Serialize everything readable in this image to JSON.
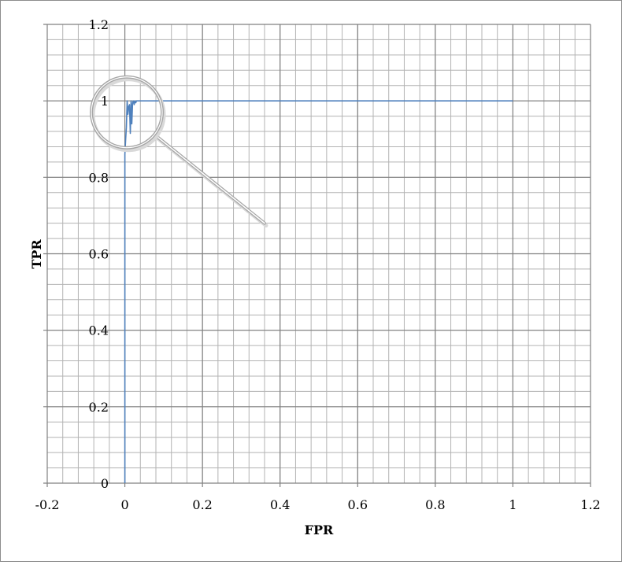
{
  "chart_data": {
    "type": "line",
    "title": "",
    "xlabel": "FPR",
    "ylabel": "TPR",
    "xlim": [
      -0.2,
      1.2
    ],
    "ylim": [
      0,
      1.2
    ],
    "xticks": [
      "-0.2",
      "0",
      "0.2",
      "0.4",
      "0.6",
      "0.8",
      "1",
      "1.2"
    ],
    "yticks": [
      "0",
      "0.2",
      "0.4",
      "0.6",
      "0.8",
      "1",
      "1.2"
    ],
    "grid": true,
    "legend": "none",
    "series": [
      {
        "color": "#4f81bd",
        "x": [
          0,
          0,
          0.002,
          0.004,
          0.006,
          0.008,
          0.01,
          0.012,
          0.014,
          0.016,
          0.018,
          0.02,
          0.022,
          0.024,
          0.026,
          0.028,
          0.03,
          0.034,
          0.04,
          0.06,
          0.1,
          0.5,
          1.0
        ],
        "y": [
          0,
          0.86,
          0.9,
          0.93,
          1.0,
          0.965,
          0.985,
          0.99,
          0.915,
          1.0,
          0.94,
          0.995,
          1.0,
          0.99,
          1.0,
          0.995,
          1.0,
          1.0,
          1.0,
          1.0,
          1.0,
          1.0,
          1.0
        ]
      }
    ],
    "annotations": [
      {
        "type": "magnifier-circle",
        "center": [
          0.005,
          0.97
        ],
        "target": [
          0.36,
          0.68
        ]
      }
    ]
  }
}
